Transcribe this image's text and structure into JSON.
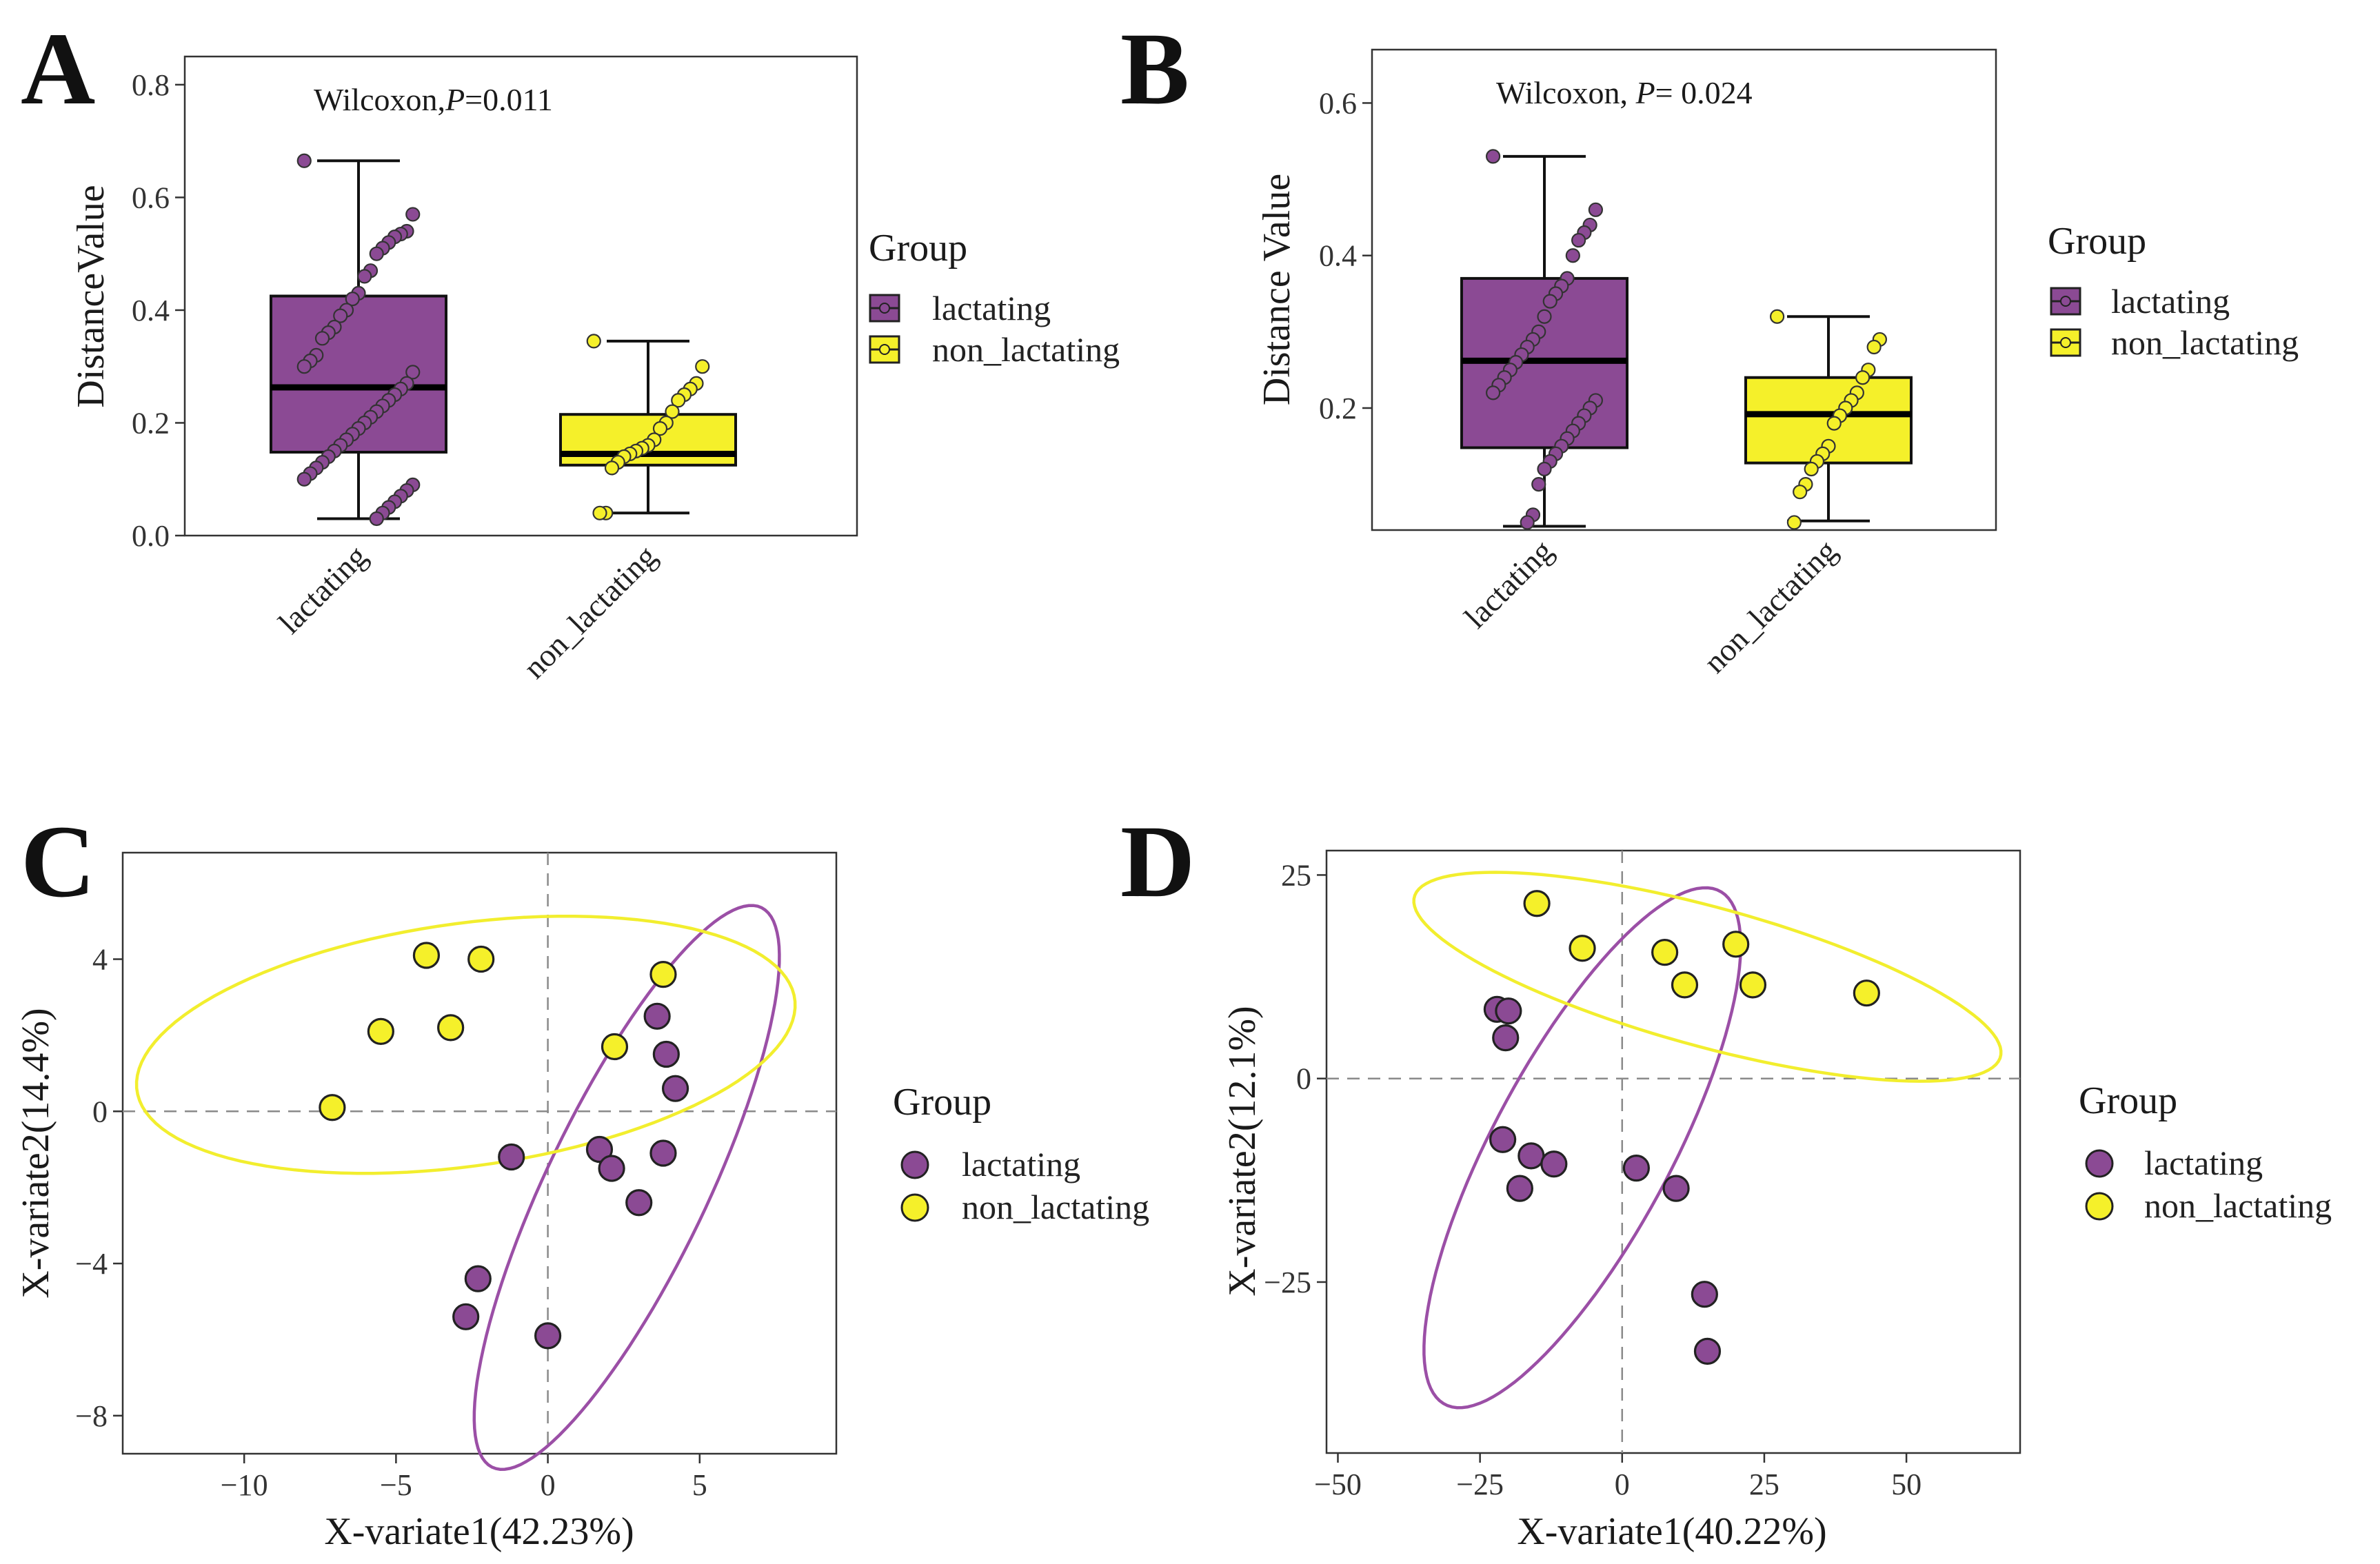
{
  "colors": {
    "lactating": "#8B4A94",
    "non_lactating": "#F5F02A",
    "ellipse_lactating": "#9B4FA6",
    "ellipse_non_lactating": "#F2EE2E",
    "stroke": "#222222"
  },
  "legend": {
    "title": "Group",
    "items": [
      "lactating",
      "non_lactating"
    ]
  },
  "chart_data": [
    {
      "id": "A",
      "panel_label": "A",
      "type": "box",
      "ylabel": "DistanceValue",
      "ylim": [
        0,
        0.85
      ],
      "yticks": [
        0.0,
        0.2,
        0.4,
        0.6,
        0.8
      ],
      "ytick_labels": [
        "0.0",
        "0.2",
        "0.4",
        "0.6",
        "0.8"
      ],
      "annotation": {
        "prefix": "Wilcoxon,",
        "p_symbol": "P",
        "suffix": "=0.011"
      },
      "categories": [
        "lactating",
        "non_lactating"
      ],
      "boxes": [
        {
          "group": "lactating",
          "min": 0.03,
          "q1": 0.148,
          "median": 0.263,
          "q3": 0.425,
          "max": 0.665
        },
        {
          "group": "non_lactating",
          "min": 0.04,
          "q1": 0.125,
          "median": 0.145,
          "q3": 0.215,
          "max": 0.345
        }
      ],
      "points": [
        [
          0.665,
          0.57,
          0.54,
          0.535,
          0.53,
          0.52,
          0.51,
          0.5,
          0.47,
          0.46,
          0.43,
          0.42,
          0.4,
          0.39,
          0.37,
          0.36,
          0.35,
          0.32,
          0.31,
          0.3,
          0.29,
          0.27,
          0.26,
          0.25,
          0.24,
          0.23,
          0.22,
          0.21,
          0.2,
          0.19,
          0.18,
          0.17,
          0.16,
          0.15,
          0.14,
          0.13,
          0.12,
          0.11,
          0.1,
          0.09,
          0.08,
          0.07,
          0.06,
          0.05,
          0.04,
          0.03
        ],
        [
          0.345,
          0.3,
          0.27,
          0.26,
          0.25,
          0.24,
          0.22,
          0.2,
          0.19,
          0.17,
          0.16,
          0.155,
          0.15,
          0.145,
          0.14,
          0.13,
          0.12,
          0.04,
          0.04
        ]
      ]
    },
    {
      "id": "B",
      "panel_label": "B",
      "type": "box",
      "ylabel": "Distance Value",
      "ylim": [
        0.04,
        0.67
      ],
      "yticks": [
        0.2,
        0.4,
        0.6
      ],
      "ytick_labels": [
        "0.2",
        "0.4",
        "0.6"
      ],
      "annotation": {
        "prefix": "Wilcoxon, ",
        "p_symbol": "P",
        "suffix": "= 0.024"
      },
      "categories": [
        "lactating",
        "non_lactating"
      ],
      "boxes": [
        {
          "group": "lactating",
          "min": 0.045,
          "q1": 0.148,
          "median": 0.262,
          "q3": 0.37,
          "max": 0.53
        },
        {
          "group": "non_lactating",
          "min": 0.052,
          "q1": 0.128,
          "median": 0.192,
          "q3": 0.24,
          "max": 0.32
        }
      ],
      "points": [
        [
          0.53,
          0.46,
          0.44,
          0.43,
          0.42,
          0.4,
          0.37,
          0.36,
          0.35,
          0.34,
          0.32,
          0.3,
          0.29,
          0.28,
          0.27,
          0.26,
          0.25,
          0.24,
          0.23,
          0.22,
          0.21,
          0.2,
          0.19,
          0.18,
          0.17,
          0.16,
          0.15,
          0.14,
          0.13,
          0.12,
          0.1,
          0.06,
          0.05
        ],
        [
          0.32,
          0.29,
          0.28,
          0.25,
          0.24,
          0.22,
          0.21,
          0.2,
          0.19,
          0.18,
          0.15,
          0.14,
          0.13,
          0.12,
          0.1,
          0.09,
          0.05
        ]
      ]
    },
    {
      "id": "C",
      "panel_label": "C",
      "type": "scatter",
      "xlabel": "X-variate1(42.23%)",
      "ylabel": "X-variate2(14.4%)",
      "xlim": [
        -14,
        9.5
      ],
      "ylim": [
        -9,
        6.8
      ],
      "xticks": [
        -10,
        -5,
        0,
        5
      ],
      "xtick_labels": [
        "−10",
        "−5",
        "0",
        "5"
      ],
      "yticks": [
        -8,
        -4,
        0,
        4
      ],
      "ytick_labels": [
        "−8",
        "−4",
        "0",
        "4"
      ],
      "series": [
        {
          "name": "lactating",
          "points": [
            [
              3.6,
              2.5
            ],
            [
              3.9,
              1.5
            ],
            [
              4.2,
              0.6
            ],
            [
              3.8,
              -1.1
            ],
            [
              1.7,
              -1.0
            ],
            [
              2.1,
              -1.5
            ],
            [
              3.0,
              -2.4
            ],
            [
              -1.2,
              -1.2
            ],
            [
              -2.3,
              -4.4
            ],
            [
              -2.7,
              -5.4
            ],
            [
              0.0,
              -5.9
            ]
          ]
        },
        {
          "name": "non_lactating",
          "points": [
            [
              -4.0,
              4.1
            ],
            [
              -2.2,
              4.0
            ],
            [
              -5.5,
              2.1
            ],
            [
              -3.2,
              2.2
            ],
            [
              -7.1,
              0.1
            ],
            [
              2.2,
              1.7
            ],
            [
              3.8,
              3.6
            ]
          ]
        }
      ],
      "ellipses": [
        {
          "group": "lactating",
          "cx": 2.6,
          "cy": -2.0,
          "rx": 8.6,
          "ry": 2.5,
          "angle_deg": 58
        },
        {
          "group": "non_lactating",
          "cx": -2.7,
          "cy": 1.75,
          "rx": 10.9,
          "ry": 3.2,
          "angle_deg": 6
        }
      ]
    },
    {
      "id": "D",
      "panel_label": "D",
      "type": "scatter",
      "xlabel": "X-variate1(40.22%)",
      "ylabel": "X-variate2(12.1%)",
      "xlim": [
        -52,
        70
      ],
      "ylim": [
        -46,
        28
      ],
      "xticks": [
        -50,
        -25,
        0,
        25,
        50
      ],
      "xtick_labels": [
        "−50",
        "−25",
        "0",
        "25",
        "50"
      ],
      "yticks": [
        -25,
        0,
        25
      ],
      "ytick_labels": [
        "−25",
        "0",
        "25"
      ],
      "series": [
        {
          "name": "lactating",
          "points": [
            [
              -22,
              8.5
            ],
            [
              -20,
              8.3
            ],
            [
              -20.5,
              5
            ],
            [
              -21,
              -7.5
            ],
            [
              -16,
              -9.5
            ],
            [
              -12,
              -10.5
            ],
            [
              -18,
              -13.5
            ],
            [
              2.5,
              -11
            ],
            [
              9.5,
              -13.5
            ],
            [
              14.5,
              -26.5
            ],
            [
              15,
              -33.5
            ]
          ]
        },
        {
          "name": "non_lactating",
          "points": [
            [
              -15,
              21.5
            ],
            [
              -7,
              16
            ],
            [
              7.5,
              15.5
            ],
            [
              11,
              11.5
            ],
            [
              20,
              16.5
            ],
            [
              23,
              11.5
            ],
            [
              43,
              10.5
            ]
          ]
        }
      ],
      "ellipses": [
        {
          "group": "lactating",
          "cx": -7,
          "cy": -8.5,
          "rx": 40,
          "ry": 14,
          "angle_deg": 50
        },
        {
          "group": "non_lactating",
          "cx": 15,
          "cy": 12.5,
          "rx": 52.5,
          "ry": 8.7,
          "angle_deg": -10.5
        }
      ]
    }
  ]
}
